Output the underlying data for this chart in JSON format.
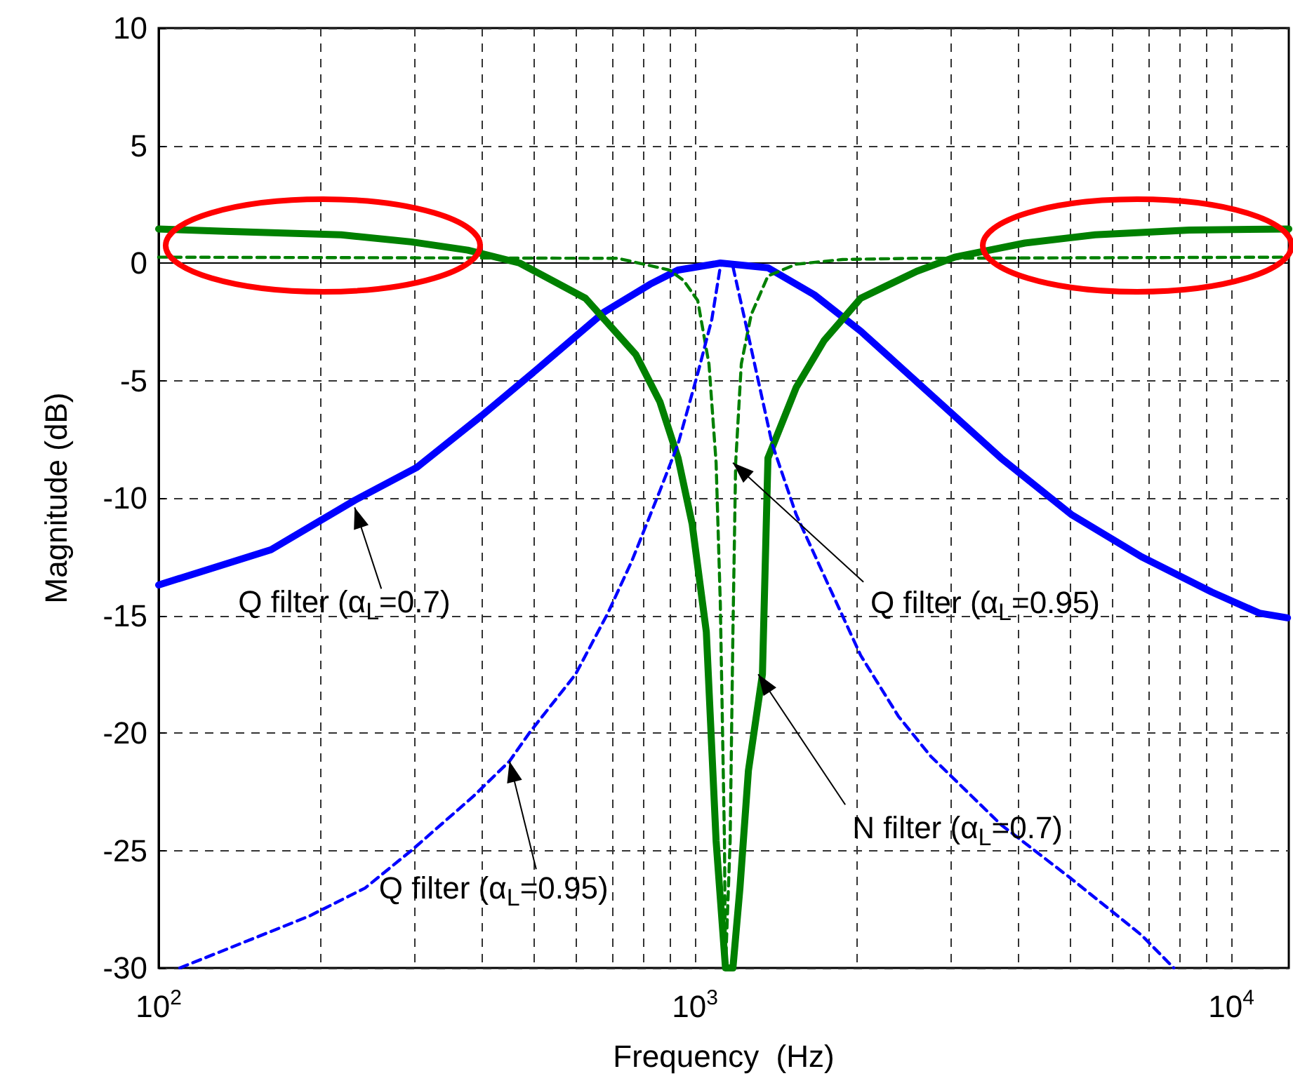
{
  "chart_data": {
    "type": "line",
    "xlabel": "Frequency  (Hz)",
    "ylabel": "Magnitude (dB)",
    "log": "x",
    "grid": true,
    "xlim": [
      100,
      12800
    ],
    "ylim": [
      -30,
      10
    ],
    "xticks": [
      {
        "value": 100,
        "label": "10$^{2}$"
      },
      {
        "value": 200,
        "label": null
      },
      {
        "value": 300,
        "label": null
      },
      {
        "value": 400,
        "label": null
      },
      {
        "value": 500,
        "label": null
      },
      {
        "value": 600,
        "label": null
      },
      {
        "value": 700,
        "label": null
      },
      {
        "value": 800,
        "label": null
      },
      {
        "value": 900,
        "label": null
      },
      {
        "value": 1000,
        "label": "10$^{3}$"
      },
      {
        "value": 2000,
        "label": null
      },
      {
        "value": 3000,
        "label": null
      },
      {
        "value": 4000,
        "label": null
      },
      {
        "value": 5000,
        "label": null
      },
      {
        "value": 6000,
        "label": null
      },
      {
        "value": 7000,
        "label": null
      },
      {
        "value": 8000,
        "label": null
      },
      {
        "value": 9000,
        "label": null
      },
      {
        "value": 10000,
        "label": "10$^{4}$"
      }
    ],
    "yticks": [
      -30,
      -25,
      -20,
      -15,
      -10,
      -5,
      0,
      5,
      10
    ],
    "series": [
      {
        "color": "#0000ff",
        "line_style": "solid",
        "x": [
          100,
          162,
          232,
          303,
          400,
          509,
          676,
          825,
          930,
          1115,
          1368,
          1669,
          2037,
          2754,
          3720,
          5030,
          6800,
          9190,
          11280,
          12730
        ],
        "values": [
          -13.7,
          -12.2,
          -10.1,
          -8.7,
          -6.5,
          -4.5,
          -2.1,
          -0.9,
          -0.3,
          0,
          -0.2,
          -1.35,
          -2.9,
          -5.6,
          -8.3,
          -10.7,
          -12.5,
          -14,
          -14.9,
          -15.1
        ]
      },
      {
        "color": "#008000",
        "line_style": "solid",
        "x": [
          100,
          133,
          219,
          296,
          377,
          471,
          625,
          776,
          860,
          930,
          988,
          1050,
          1095,
          1140,
          1177,
          1213,
          1258,
          1336,
          1368,
          1544,
          1741,
          2037,
          2592,
          3050,
          4122,
          5572,
          8349,
          12800
        ],
        "values": [
          1.45,
          1.35,
          1.2,
          0.9,
          0.55,
          0,
          -1.5,
          -3.9,
          -5.9,
          -8.3,
          -11.1,
          -15.7,
          -24.6,
          -30,
          -30,
          -26.6,
          -21.6,
          -17.5,
          -8.3,
          -5.3,
          -3.3,
          -1.5,
          -0.35,
          0.25,
          0.85,
          1.2,
          1.4,
          1.45
        ]
      },
      {
        "color": "#008000",
        "line_style": "dashed",
        "x": [
          100,
          718,
          897,
          953,
          1012,
          1062,
          1095,
          1115,
          1135,
          1140,
          1163,
          1177,
          1191,
          1220,
          1273,
          1368,
          1544,
          1884,
          2546,
          12800
        ],
        "values": [
          0.25,
          0.2,
          -0.3,
          -0.75,
          -1.6,
          -4.3,
          -8.5,
          -14.5,
          -24.6,
          -30,
          -24.6,
          -15.7,
          -8.5,
          -4.3,
          -2.2,
          -0.55,
          -0.05,
          0.15,
          0.2,
          0.25
        ]
      },
      {
        "color": "#0000ff",
        "line_style": "dashed",
        "x": [
          109.5,
          190.6,
          242.6,
          296,
          386,
          451,
          491,
          599,
          688,
          762,
          860,
          930,
          1012,
          1075,
          1115,
          1127,
          1177,
          1258,
          1393,
          1544,
          1773,
          2037,
          2397,
          2754,
          3720,
          5030,
          6800,
          7812
        ],
        "values": [
          -30,
          -27.8,
          -26.6,
          -25,
          -22.7,
          -21.2,
          -20,
          -17.5,
          -14.9,
          -12.7,
          -9.7,
          -7.7,
          -4.7,
          -2.4,
          -0.15,
          0,
          -0.15,
          -3.1,
          -7.7,
          -10.7,
          -13.7,
          -16.7,
          -19.3,
          -21,
          -23.9,
          -26.2,
          -28.6,
          -30
        ]
      }
    ],
    "annotations": [
      {
        "text": "Q filter (α$_{L}$=0.7)",
        "x": 232,
        "y": -10.4
      },
      {
        "text": "Q filter (α$_{L}$=0.95)",
        "x": 1177,
        "y": -8.5
      },
      {
        "text": "N filter (α$_{L}$=0.7)",
        "x": 1312,
        "y": -17.5
      },
      {
        "text": "Q filter (α$_{L}$=0.95)",
        "x": 451,
        "y": -21.2
      }
    ]
  }
}
